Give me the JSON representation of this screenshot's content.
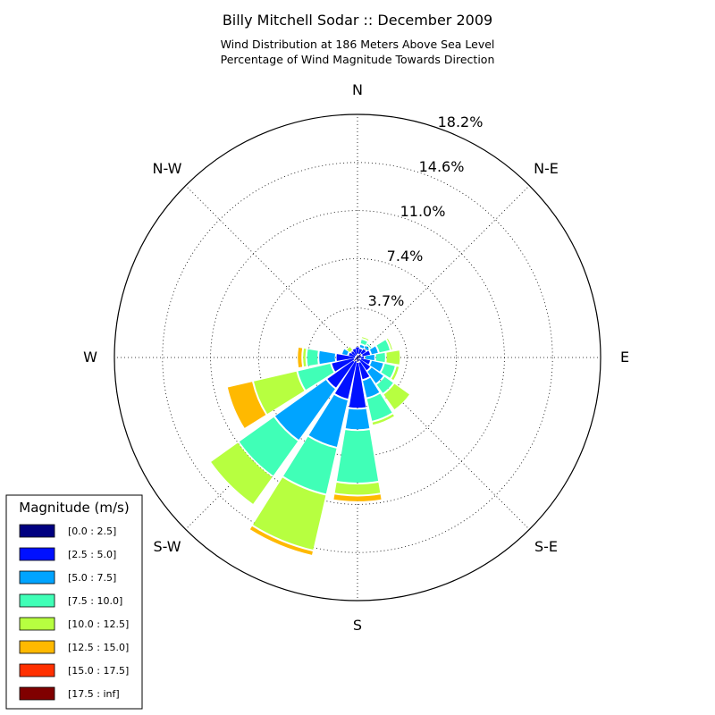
{
  "chart_data": {
    "type": "windrose",
    "title": "Billy Mitchell Sodar :: December 2009",
    "subtitle_lines": [
      "Wind Distribution at 186 Meters Above Sea Level",
      "Percentage of Wind Magnitude Towards Direction"
    ],
    "direction_labels": [
      "N",
      "N-E",
      "E",
      "S-E",
      "S",
      "S-W",
      "W",
      "N-W"
    ],
    "radial_ticks": [
      "3.7%",
      "7.4%",
      "11.0%",
      "14.6%",
      "18.2%"
    ],
    "radial_tick_values": [
      3.7,
      7.4,
      11.0,
      14.6,
      18.2
    ],
    "rmax": 18.2,
    "grid": true,
    "direction_step_deg": 22.5,
    "directions_deg": [
      0,
      22.5,
      45,
      67.5,
      90,
      112.5,
      135,
      157.5,
      180,
      202.5,
      225,
      247.5,
      270,
      292.5,
      315,
      337.5
    ],
    "legend": {
      "title": "Magnitude (m/s)",
      "placement": "bottom-left",
      "bins": [
        "[0.0 : 2.5]",
        "[2.5 : 5.0]",
        "[5.0 : 7.5]",
        "[7.5 : 10.0]",
        "[10.0 : 12.5]",
        "[12.5 : 15.0]",
        "[15.0 : 17.5]",
        "[17.5 : inf]"
      ],
      "colors": [
        "#000080",
        "#0010ff",
        "#00a4ff",
        "#40ffb7",
        "#b7ff40",
        "#ffb900",
        "#ff3000",
        "#800000"
      ]
    },
    "series": [
      {
        "values": [
          0.3,
          0.3,
          0.4,
          0.4,
          0.1,
          0.3,
          0.2,
          0.4,
          0.4,
          0.3,
          0.4,
          0.3,
          0.2,
          0.2,
          0.2,
          0.2
        ]
      },
      {
        "values": [
          0.6,
          0.5,
          0.5,
          0.7,
          0.5,
          0.8,
          1.1,
          1.4,
          3.5,
          3.0,
          2.5,
          1.8,
          1.5,
          0.6,
          0.5,
          0.6
        ]
      },
      {
        "values": [
          0.0,
          0.3,
          0.3,
          0.6,
          0.8,
          1.0,
          1.2,
          1.4,
          1.6,
          3.7,
          4.8,
          0.0,
          1.3,
          0.5,
          0.0,
          0.0
        ]
      },
      {
        "values": [
          0.0,
          0.4,
          0.2,
          0.9,
          0.8,
          0.9,
          0.9,
          1.8,
          4.0,
          3.6,
          3.3,
          2.6,
          0.9,
          0.0,
          0.0,
          0.0
        ]
      },
      {
        "values": [
          0.0,
          0.2,
          0.0,
          0.2,
          1.1,
          0.3,
          1.5,
          0.3,
          0.9,
          4.3,
          2.6,
          3.4,
          0.3,
          0.0,
          0.4,
          0.1
        ]
      },
      {
        "values": [
          0.0,
          0.0,
          0.0,
          0.0,
          0.0,
          0.0,
          0.0,
          0.1,
          0.5,
          0.4,
          0.0,
          2.0,
          0.4,
          0.0,
          0.0,
          0.0
        ]
      },
      {
        "values": [
          0,
          0,
          0,
          0,
          0,
          0,
          0,
          0,
          0,
          0,
          0,
          0,
          0,
          0,
          0,
          0
        ]
      },
      {
        "values": [
          0,
          0,
          0,
          0,
          0,
          0,
          0,
          0,
          0,
          0,
          0,
          0,
          0,
          0,
          0,
          0
        ]
      }
    ]
  }
}
